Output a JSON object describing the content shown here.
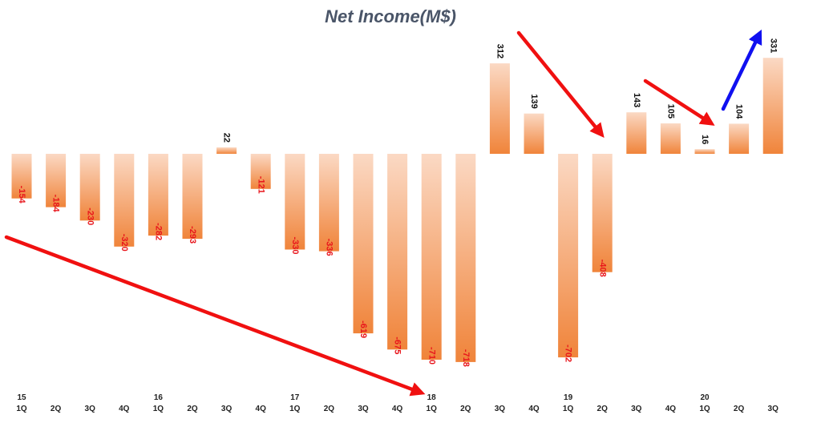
{
  "chart_data": {
    "type": "bar",
    "title": "Net Income(M$)",
    "xlabel": "",
    "ylabel": "",
    "ylim": [
      -780,
      345
    ],
    "grid": false,
    "legend": "none",
    "categories": [
      {
        "year": "15",
        "quarter": "1Q"
      },
      {
        "year": "",
        "quarter": "2Q"
      },
      {
        "year": "",
        "quarter": "3Q"
      },
      {
        "year": "",
        "quarter": "4Q"
      },
      {
        "year": "16",
        "quarter": "1Q"
      },
      {
        "year": "",
        "quarter": "2Q"
      },
      {
        "year": "",
        "quarter": "3Q"
      },
      {
        "year": "",
        "quarter": "4Q"
      },
      {
        "year": "17",
        "quarter": "1Q"
      },
      {
        "year": "",
        "quarter": "2Q"
      },
      {
        "year": "",
        "quarter": "3Q"
      },
      {
        "year": "",
        "quarter": "4Q"
      },
      {
        "year": "18",
        "quarter": "1Q"
      },
      {
        "year": "",
        "quarter": "2Q"
      },
      {
        "year": "",
        "quarter": "3Q"
      },
      {
        "year": "",
        "quarter": "4Q"
      },
      {
        "year": "19",
        "quarter": "1Q"
      },
      {
        "year": "",
        "quarter": "2Q"
      },
      {
        "year": "",
        "quarter": "3Q"
      },
      {
        "year": "",
        "quarter": "4Q"
      },
      {
        "year": "20",
        "quarter": "1Q"
      },
      {
        "year": "",
        "quarter": "2Q"
      },
      {
        "year": "",
        "quarter": "3Q"
      }
    ],
    "values": [
      -154,
      -184,
      -230,
      -320,
      -282,
      -293,
      22,
      -121,
      -330,
      -336,
      -619,
      -675,
      -710,
      -718,
      312,
      139,
      -702,
      -408,
      143,
      105,
      16,
      104,
      331
    ],
    "value_labels": [
      "-154",
      "-184",
      "-230",
      "-320",
      "-282",
      "-293",
      "22",
      "-121",
      "-330",
      "-336",
      "-619",
      "-675",
      "-710",
      "-718",
      "312",
      "139",
      "-702",
      "-408",
      "143",
      "105",
      "16",
      "104",
      "331"
    ],
    "colors": {
      "bar_light": "#fbd9c4",
      "bar_dark": "#f0843a",
      "negative_label": "#e8161c",
      "positive_label": "#111111",
      "trend_red": "#f01010",
      "trend_blue": "#1010f0"
    },
    "trend_arrows": [
      {
        "color": "red",
        "from_period": "15 1Q",
        "to_period": "18 1Q",
        "direction": "down"
      },
      {
        "color": "red",
        "from_period": "18 3Q",
        "to_period": "19 2Q",
        "direction": "down"
      },
      {
        "color": "red",
        "from_period": "19 3Q",
        "to_period": "20 1Q",
        "direction": "down"
      },
      {
        "color": "blue",
        "from_period": "20 1Q",
        "to_period": "20 3Q",
        "direction": "up"
      }
    ]
  }
}
